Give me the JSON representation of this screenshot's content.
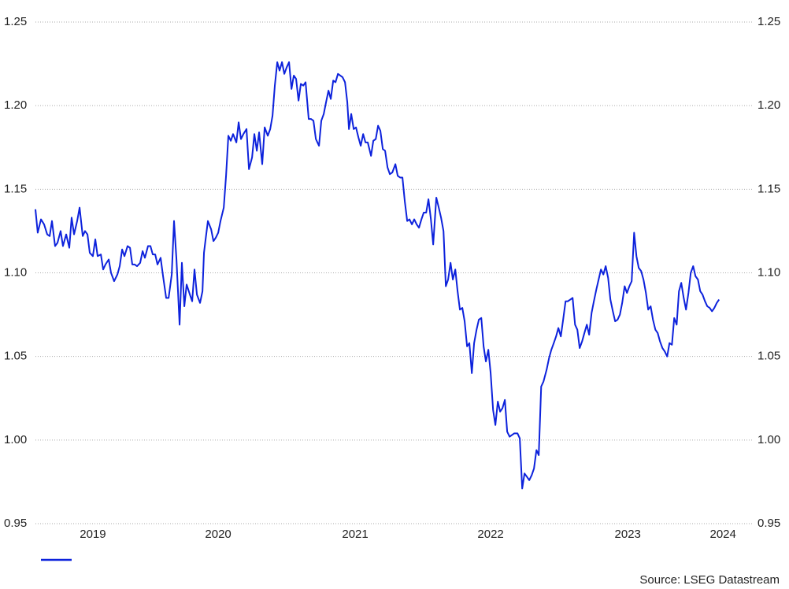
{
  "chart_data": {
    "type": "line",
    "source": "Source: LSEG Datastream",
    "ylim": [
      0.95,
      1.25
    ],
    "yticks": [
      {
        "value": 0.95,
        "label": "0.95"
      },
      {
        "value": 1.0,
        "label": "1.00"
      },
      {
        "value": 1.05,
        "label": "1.05"
      },
      {
        "value": 1.1,
        "label": "1.10"
      },
      {
        "value": 1.15,
        "label": "1.15"
      },
      {
        "value": 1.2,
        "label": "1.20"
      },
      {
        "value": 1.25,
        "label": "1.25"
      }
    ],
    "xlim": [
      2019.155,
      2024.444
    ],
    "xticks": [
      {
        "value": 2019.579,
        "label": "2019"
      },
      {
        "value": 2020.504,
        "label": "2020"
      },
      {
        "value": 2021.515,
        "label": "2021"
      },
      {
        "value": 2022.515,
        "label": "2022"
      },
      {
        "value": 2023.527,
        "label": "2023"
      },
      {
        "value": 2024.23,
        "label": "2024"
      }
    ],
    "grid": true,
    "series": [
      {
        "color": "#0d22dc",
        "x": [
          2019.155,
          2019.172,
          2019.196,
          2019.219,
          2019.242,
          2019.26,
          2019.277,
          2019.3,
          2019.318,
          2019.341,
          2019.358,
          2019.382,
          2019.405,
          2019.422,
          2019.44,
          2019.463,
          2019.481,
          2019.504,
          2019.521,
          2019.539,
          2019.556,
          2019.579,
          2019.597,
          2019.614,
          2019.638,
          2019.655,
          2019.672,
          2019.696,
          2019.713,
          2019.736,
          2019.76,
          2019.777,
          2019.795,
          2019.812,
          2019.835,
          2019.853,
          2019.87,
          2019.888,
          2019.905,
          2019.928,
          2019.946,
          2019.963,
          2019.986,
          2020.004,
          2020.021,
          2020.039,
          2020.056,
          2020.079,
          2020.097,
          2020.12,
          2020.138,
          2020.161,
          2020.178,
          2020.196,
          2020.219,
          2020.236,
          2020.254,
          2020.271,
          2020.295,
          2020.312,
          2020.329,
          2020.347,
          2020.37,
          2020.388,
          2020.399,
          2020.411,
          2020.428,
          2020.452,
          2020.469,
          2020.486,
          2020.504,
          2020.521,
          2020.545,
          2020.562,
          2020.579,
          2020.597,
          2020.614,
          2020.638,
          2020.655,
          2020.672,
          2020.69,
          2020.713,
          2020.731,
          2020.754,
          2020.771,
          2020.789,
          2020.806,
          2020.829,
          2020.847,
          2020.87,
          2020.888,
          2020.905,
          2020.922,
          2020.94,
          2020.957,
          2020.975,
          2020.992,
          2021.01,
          2021.027,
          2021.045,
          2021.062,
          2021.079,
          2021.097,
          2021.114,
          2021.132,
          2021.149,
          2021.172,
          2021.19,
          2021.207,
          2021.225,
          2021.248,
          2021.265,
          2021.283,
          2021.3,
          2021.318,
          2021.335,
          2021.353,
          2021.37,
          2021.388,
          2021.405,
          2021.422,
          2021.44,
          2021.457,
          2021.469,
          2021.486,
          2021.504,
          2021.521,
          2021.539,
          2021.556,
          2021.574,
          2021.591,
          2021.608,
          2021.632,
          2021.649,
          2021.667,
          2021.684,
          2021.701,
          2021.719,
          2021.736,
          2021.754,
          2021.771,
          2021.789,
          2021.812,
          2021.829,
          2021.847,
          2021.864,
          2021.881,
          2021.899,
          2021.916,
          2021.934,
          2021.951,
          2021.969,
          2021.986,
          2022.004,
          2022.021,
          2022.039,
          2022.056,
          2022.074,
          2022.091,
          2022.114,
          2022.132,
          2022.149,
          2022.167,
          2022.184,
          2022.201,
          2022.219,
          2022.236,
          2022.254,
          2022.271,
          2022.288,
          2022.306,
          2022.323,
          2022.341,
          2022.358,
          2022.376,
          2022.393,
          2022.411,
          2022.428,
          2022.446,
          2022.463,
          2022.48,
          2022.498,
          2022.515,
          2022.533,
          2022.55,
          2022.568,
          2022.585,
          2022.602,
          2022.62,
          2022.637,
          2022.655,
          2022.672,
          2022.69,
          2022.713,
          2022.73,
          2022.748,
          2022.765,
          2022.783,
          2022.8,
          2022.818,
          2022.835,
          2022.853,
          2022.87,
          2022.888,
          2022.905,
          2022.928,
          2022.946,
          2022.963,
          2022.981,
          2022.998,
          2023.015,
          2023.033,
          2023.05,
          2023.068,
          2023.085,
          2023.103,
          2023.12,
          2023.138,
          2023.155,
          2023.172,
          2023.19,
          2023.207,
          2023.225,
          2023.242,
          2023.26,
          2023.277,
          2023.295,
          2023.312,
          2023.329,
          2023.347,
          2023.364,
          2023.382,
          2023.399,
          2023.417,
          2023.434,
          2023.452,
          2023.469,
          2023.486,
          2023.504,
          2023.521,
          2023.539,
          2023.556,
          2023.574,
          2023.591,
          2023.608,
          2023.626,
          2023.643,
          2023.661,
          2023.678,
          2023.696,
          2023.713,
          2023.731,
          2023.748,
          2023.765,
          2023.783,
          2023.8,
          2023.818,
          2023.835,
          2023.853,
          2023.87,
          2023.888,
          2023.905,
          2023.922,
          2023.94,
          2023.957,
          2023.975,
          2023.992,
          2024.01,
          2024.027,
          2024.045,
          2024.062,
          2024.079,
          2024.097,
          2024.114,
          2024.132,
          2024.149,
          2024.166,
          2024.184,
          2024.201
        ],
        "values": [
          1.138,
          1.124,
          1.132,
          1.129,
          1.123,
          1.122,
          1.131,
          1.116,
          1.118,
          1.125,
          1.116,
          1.123,
          1.115,
          1.133,
          1.123,
          1.131,
          1.139,
          1.122,
          1.125,
          1.123,
          1.112,
          1.11,
          1.12,
          1.11,
          1.111,
          1.102,
          1.105,
          1.108,
          1.1,
          1.095,
          1.099,
          1.104,
          1.114,
          1.11,
          1.116,
          1.115,
          1.105,
          1.105,
          1.104,
          1.106,
          1.113,
          1.109,
          1.116,
          1.116,
          1.111,
          1.111,
          1.105,
          1.109,
          1.098,
          1.085,
          1.085,
          1.099,
          1.131,
          1.108,
          1.069,
          1.106,
          1.08,
          1.093,
          1.087,
          1.083,
          1.102,
          1.087,
          1.082,
          1.089,
          1.112,
          1.12,
          1.131,
          1.126,
          1.119,
          1.121,
          1.124,
          1.131,
          1.139,
          1.158,
          1.182,
          1.179,
          1.183,
          1.178,
          1.19,
          1.18,
          1.183,
          1.186,
          1.162,
          1.169,
          1.183,
          1.173,
          1.184,
          1.165,
          1.187,
          1.182,
          1.186,
          1.194,
          1.212,
          1.226,
          1.221,
          1.226,
          1.219,
          1.223,
          1.226,
          1.21,
          1.218,
          1.216,
          1.203,
          1.213,
          1.212,
          1.214,
          1.192,
          1.192,
          1.191,
          1.18,
          1.176,
          1.191,
          1.195,
          1.202,
          1.209,
          1.204,
          1.215,
          1.214,
          1.219,
          1.218,
          1.217,
          1.214,
          1.202,
          1.186,
          1.195,
          1.186,
          1.187,
          1.181,
          1.176,
          1.183,
          1.178,
          1.178,
          1.17,
          1.179,
          1.18,
          1.188,
          1.185,
          1.174,
          1.173,
          1.163,
          1.159,
          1.16,
          1.165,
          1.158,
          1.157,
          1.157,
          1.143,
          1.131,
          1.132,
          1.129,
          1.132,
          1.129,
          1.127,
          1.132,
          1.136,
          1.136,
          1.144,
          1.132,
          1.117,
          1.145,
          1.139,
          1.133,
          1.125,
          1.092,
          1.096,
          1.106,
          1.096,
          1.102,
          1.089,
          1.078,
          1.079,
          1.071,
          1.056,
          1.058,
          1.04,
          1.058,
          1.066,
          1.072,
          1.073,
          1.056,
          1.047,
          1.054,
          1.04,
          1.018,
          1.009,
          1.023,
          1.017,
          1.019,
          1.024,
          1.005,
          1.002,
          1.003,
          1.004,
          1.004,
          1.001,
          0.971,
          0.98,
          0.978,
          0.976,
          0.979,
          0.983,
          0.994,
          0.991,
          1.032,
          1.035,
          1.042,
          1.049,
          1.054,
          1.058,
          1.062,
          1.067,
          1.062,
          1.072,
          1.083,
          1.083,
          1.084,
          1.085,
          1.069,
          1.066,
          1.055,
          1.059,
          1.064,
          1.069,
          1.063,
          1.076,
          1.083,
          1.09,
          1.096,
          1.102,
          1.099,
          1.104,
          1.097,
          1.084,
          1.077,
          1.071,
          1.072,
          1.075,
          1.082,
          1.092,
          1.088,
          1.092,
          1.095,
          1.124,
          1.11,
          1.103,
          1.101,
          1.096,
          1.088,
          1.078,
          1.08,
          1.072,
          1.066,
          1.064,
          1.059,
          1.055,
          1.053,
          1.05,
          1.058,
          1.057,
          1.073,
          1.069,
          1.089,
          1.094,
          1.085,
          1.078,
          1.088,
          1.1,
          1.104,
          1.098,
          1.096,
          1.089,
          1.087,
          1.083,
          1.08,
          1.079,
          1.077,
          1.079,
          1.082,
          1.084
        ]
      }
    ]
  }
}
